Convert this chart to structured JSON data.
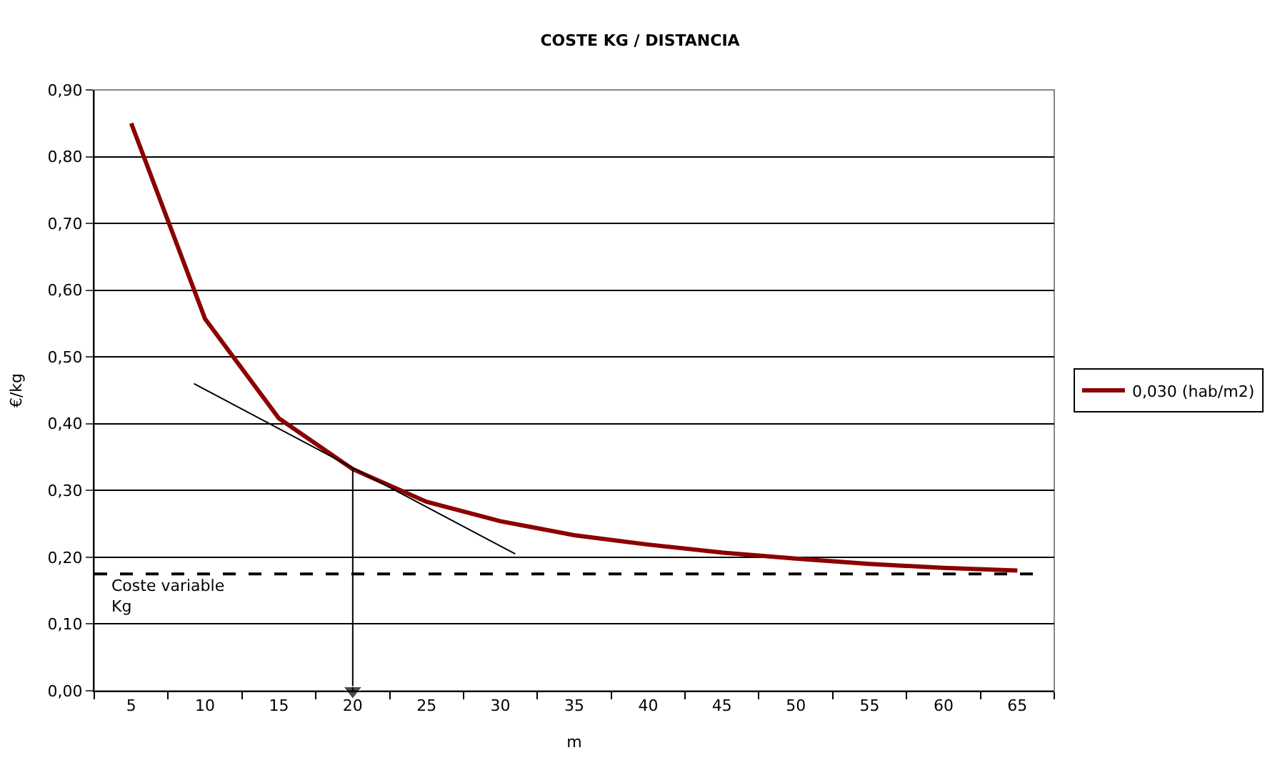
{
  "chart_data": {
    "type": "line",
    "title": "COSTE KG / DISTANCIA",
    "xlabel": "m",
    "ylabel": "€/kg",
    "x": [
      5,
      10,
      15,
      20,
      25,
      30,
      35,
      40,
      45,
      50,
      55,
      60,
      65
    ],
    "series": [
      {
        "name": "0,030 (hab/m2)",
        "color": "#8b0000",
        "values": [
          0.85,
          0.557,
          0.408,
          0.332,
          0.283,
          0.254,
          0.233,
          0.219,
          0.207,
          0.198,
          0.19,
          0.184,
          0.18
        ]
      },
      {
        "type": "line",
        "color": "#000000",
        "x": [
          9.25,
          31
        ],
        "values": [
          0.46,
          0.205
        ]
      },
      {
        "type": "line",
        "color": "#000000",
        "marker": "triangle",
        "x": [
          20,
          20
        ],
        "values": [
          0.332,
          0.0
        ]
      }
    ],
    "xlim": [
      2.5,
      67.5
    ],
    "xticks": [
      5,
      10,
      15,
      20,
      25,
      30,
      35,
      40,
      45,
      50,
      55,
      60,
      65
    ],
    "ylim": [
      0,
      0.9
    ],
    "yticks": [
      {
        "value": 0,
        "label": "0,00"
      },
      {
        "value": 0.1,
        "label": "0,10"
      },
      {
        "value": 0.2,
        "label": "0,20"
      },
      {
        "value": 0.3,
        "label": "0,30"
      },
      {
        "value": 0.4,
        "label": "0,40"
      },
      {
        "value": 0.5,
        "label": "0,50"
      },
      {
        "value": 0.6,
        "label": "0,60"
      },
      {
        "value": 0.7,
        "label": "0,70"
      },
      {
        "value": 0.8,
        "label": "0,80"
      },
      {
        "value": 0.9,
        "label": "0,90"
      }
    ],
    "ref_lines": [
      {
        "axis": "y",
        "value": 0.175,
        "label": "Coste variable\nKg",
        "color": "#000000",
        "line_style": "dashed"
      }
    ],
    "grid": "y",
    "legend": "right",
    "marker": "none",
    "line_style": "solid"
  }
}
